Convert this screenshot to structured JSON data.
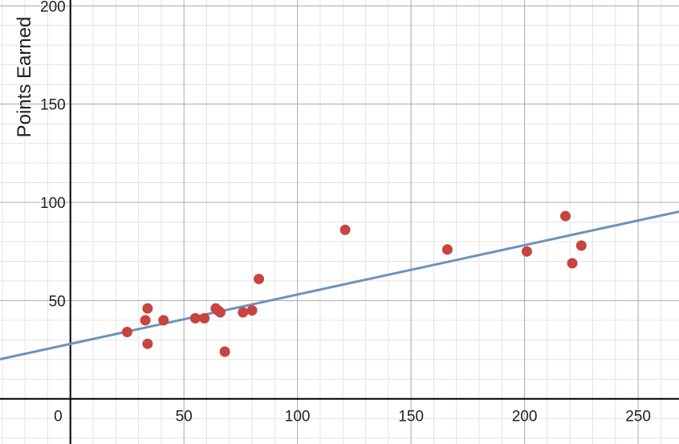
{
  "chart_data": {
    "type": "scatter",
    "title": "",
    "xlabel": "",
    "ylabel": "Points Earned",
    "xlim": [
      -31,
      268
    ],
    "ylim": [
      -23,
      203
    ],
    "grid": true,
    "x_ticks": [
      0,
      50,
      100,
      150,
      200,
      250
    ],
    "y_ticks": [
      50,
      100,
      150,
      200
    ],
    "x_tick_labels": [
      "0",
      "50",
      "100",
      "150",
      "200",
      "250"
    ],
    "y_tick_labels": [
      "50",
      "100",
      "150",
      "200"
    ],
    "series": [
      {
        "type": "scatter",
        "color": "#c74440",
        "points": [
          {
            "x": 25,
            "y": 34
          },
          {
            "x": 33,
            "y": 40
          },
          {
            "x": 34,
            "y": 46
          },
          {
            "x": 34,
            "y": 28
          },
          {
            "x": 41,
            "y": 40
          },
          {
            "x": 55,
            "y": 41
          },
          {
            "x": 59,
            "y": 41
          },
          {
            "x": 64,
            "y": 46
          },
          {
            "x": 65,
            "y": 45
          },
          {
            "x": 66,
            "y": 44
          },
          {
            "x": 68,
            "y": 24
          },
          {
            "x": 76,
            "y": 44
          },
          {
            "x": 80,
            "y": 45
          },
          {
            "x": 83,
            "y": 61
          },
          {
            "x": 121,
            "y": 86
          },
          {
            "x": 166,
            "y": 76
          },
          {
            "x": 201,
            "y": 75
          },
          {
            "x": 218,
            "y": 93
          },
          {
            "x": 221,
            "y": 69
          },
          {
            "x": 225,
            "y": 78
          }
        ]
      },
      {
        "type": "line",
        "color": "#6b93bd",
        "slope": 0.2513,
        "intercept": 27.95
      }
    ]
  }
}
